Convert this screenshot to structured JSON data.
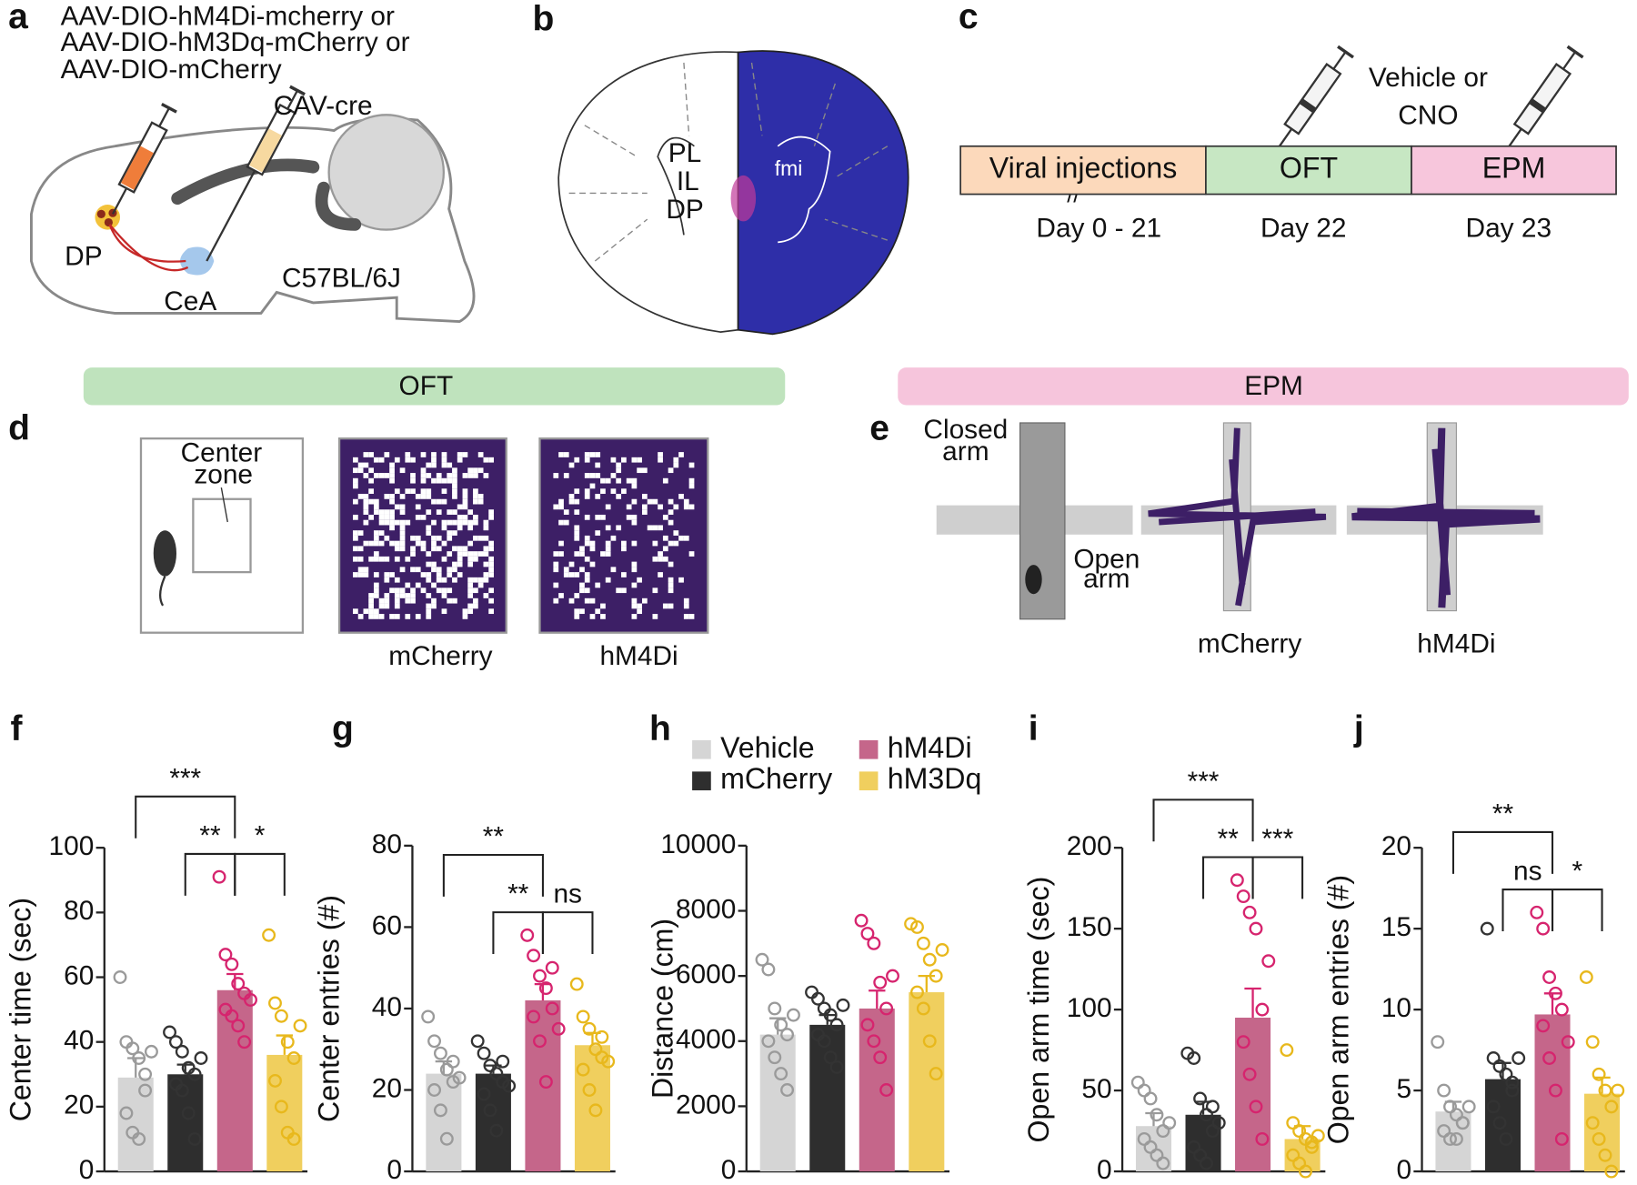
{
  "panel_a": {
    "label": "a",
    "virus_lines": [
      "AAV-DIO-hM4Di-mcherry or",
      "AAV-DIO-hM3Dq-mCherry or",
      "AAV-DIO-mCherry"
    ],
    "cav": "CAV-cre",
    "dp": "DP",
    "cea": "CeA",
    "strain": "C57BL/6J"
  },
  "panel_b": {
    "label": "b",
    "regions": [
      "PL",
      "IL",
      "DP"
    ],
    "fmi": "fmi"
  },
  "panel_c": {
    "label": "c",
    "treatment_lines": [
      "Vehicle or",
      "CNO"
    ],
    "stages": [
      {
        "name": "Viral injections",
        "day": "Day 0 - 21",
        "color": "#fcd9bb"
      },
      {
        "name": "OFT",
        "day": "Day 22",
        "color": "#c7e7c3"
      },
      {
        "name": "EPM",
        "day": "Day 23",
        "color": "#f7c6dc"
      }
    ]
  },
  "banners": [
    {
      "text": "OFT",
      "color": "#bfe3bd"
    },
    {
      "text": "EPM",
      "color": "#f6c5dc"
    }
  ],
  "panel_d": {
    "label": "d",
    "zone_lines": [
      "Center",
      "zone"
    ],
    "maps": [
      "mCherry",
      "hM4Di"
    ]
  },
  "panel_e": {
    "label": "e",
    "closed": [
      "Closed",
      "arm"
    ],
    "open": [
      "Open",
      "arm"
    ],
    "maps": [
      "mCherry",
      "hM4Di"
    ]
  },
  "legend": [
    {
      "name": "Vehicle",
      "color": "#d5d5d5",
      "point_color": "#9a9a9a"
    },
    {
      "name": "mCherry",
      "color": "#2e2e2e",
      "point_color": "#333333"
    },
    {
      "name": "hM4Di",
      "color": "#c5668a",
      "point_color": "#d6246e"
    },
    {
      "name": "hM3Dq",
      "color": "#f0cf5e",
      "point_color": "#e8b81c"
    }
  ],
  "chart_data": [
    {
      "type": "bar",
      "label": "f",
      "ylabel": "Center time (sec)",
      "ylim": [
        0,
        100
      ],
      "yticks": [
        0,
        20,
        40,
        60,
        80,
        100
      ],
      "values": [
        29,
        30,
        56,
        36
      ],
      "errors": [
        6,
        3,
        5,
        6
      ],
      "points": [
        [
          60,
          40,
          38,
          35,
          25,
          18,
          12,
          10,
          30,
          37
        ],
        [
          43,
          40,
          37,
          32,
          30,
          27,
          25,
          18,
          10,
          35
        ],
        [
          91,
          67,
          64,
          58,
          55,
          50,
          48,
          45,
          40,
          53
        ],
        [
          73,
          52,
          48,
          40,
          35,
          28,
          20,
          12,
          10,
          45
        ]
      ],
      "annotations": [
        {
          "text": "**",
          "groups": [
            1,
            2
          ]
        },
        {
          "text": "*",
          "groups": [
            2,
            3
          ]
        },
        {
          "text": "***",
          "groups": [
            0,
            2
          ]
        }
      ]
    },
    {
      "type": "bar",
      "label": "g",
      "ylabel": "Center entries (#)",
      "ylim": [
        0,
        80
      ],
      "yticks": [
        0,
        20,
        40,
        60,
        80
      ],
      "values": [
        24,
        24,
        42,
        31
      ],
      "errors": [
        3,
        2,
        4,
        3
      ],
      "points": [
        [
          38,
          32,
          29,
          25,
          22,
          20,
          15,
          8,
          27,
          23
        ],
        [
          32,
          29,
          26,
          24,
          22,
          19,
          15,
          10,
          27,
          21
        ],
        [
          58,
          53,
          48,
          45,
          40,
          38,
          32,
          22,
          50,
          35
        ],
        [
          46,
          38,
          35,
          30,
          28,
          25,
          20,
          15,
          33,
          27
        ]
      ],
      "annotations": [
        {
          "text": "**",
          "groups": [
            1,
            2
          ]
        },
        {
          "text": "ns",
          "groups": [
            2,
            3
          ]
        },
        {
          "text": "**",
          "groups": [
            0,
            2
          ]
        }
      ]
    },
    {
      "type": "bar",
      "label": "h",
      "ylabel": "Distance (cm)",
      "ylim": [
        0,
        10000
      ],
      "yticks": [
        0,
        2000,
        4000,
        6000,
        8000,
        10000
      ],
      "values": [
        4200,
        4500,
        5000,
        5500
      ],
      "errors": [
        500,
        300,
        550,
        500
      ],
      "points": [
        [
          6500,
          6200,
          5000,
          4500,
          4200,
          4000,
          3500,
          3000,
          2500,
          4800
        ],
        [
          5500,
          5300,
          5000,
          4800,
          4500,
          4200,
          4000,
          3500,
          3200,
          5100
        ],
        [
          7700,
          7300,
          7000,
          5800,
          5000,
          4500,
          4000,
          3500,
          2500,
          6000
        ],
        [
          7600,
          7500,
          7000,
          6500,
          6000,
          5500,
          5000,
          4000,
          3000,
          6800
        ]
      ],
      "annotations": []
    },
    {
      "type": "bar",
      "label": "i",
      "ylabel": "Open arm time (sec)",
      "ylim": [
        0,
        200
      ],
      "yticks": [
        0,
        50,
        100,
        150,
        200
      ],
      "values": [
        28,
        35,
        95,
        20
      ],
      "errors": [
        8,
        8,
        18,
        8
      ],
      "points": [
        [
          55,
          50,
          45,
          35,
          25,
          20,
          15,
          10,
          5,
          30
        ],
        [
          73,
          70,
          45,
          35,
          25,
          15,
          10,
          5,
          40,
          30
        ],
        [
          180,
          170,
          160,
          150,
          100,
          80,
          60,
          40,
          20,
          130
        ],
        [
          75,
          30,
          25,
          20,
          15,
          10,
          5,
          0,
          18,
          22
        ]
      ],
      "annotations": [
        {
          "text": "**",
          "groups": [
            1,
            2
          ]
        },
        {
          "text": "***",
          "groups": [
            2,
            3
          ]
        },
        {
          "text": "***",
          "groups": [
            0,
            2
          ]
        }
      ]
    },
    {
      "type": "bar",
      "label": "j",
      "ylabel": "Open arm entries (#)",
      "ylim": [
        0,
        20
      ],
      "yticks": [
        0,
        5,
        10,
        15,
        20
      ],
      "values": [
        3.7,
        5.7,
        9.7,
        4.8
      ],
      "errors": [
        0.6,
        1,
        1.3,
        1
      ],
      "points": [
        [
          8,
          5,
          4,
          3.5,
          3,
          2.5,
          2,
          2,
          3,
          4
        ],
        [
          15,
          7,
          6.5,
          6,
          5,
          4,
          3,
          2,
          5.5,
          7
        ],
        [
          16,
          15,
          12,
          11,
          10,
          9,
          7,
          5,
          2,
          8
        ],
        [
          12,
          8,
          6,
          5,
          4,
          3,
          2,
          1,
          0,
          5
        ]
      ],
      "annotations": [
        {
          "text": "ns",
          "groups": [
            1,
            2
          ]
        },
        {
          "text": "*",
          "groups": [
            2,
            3
          ]
        },
        {
          "text": "**",
          "groups": [
            0,
            2
          ]
        }
      ]
    }
  ]
}
